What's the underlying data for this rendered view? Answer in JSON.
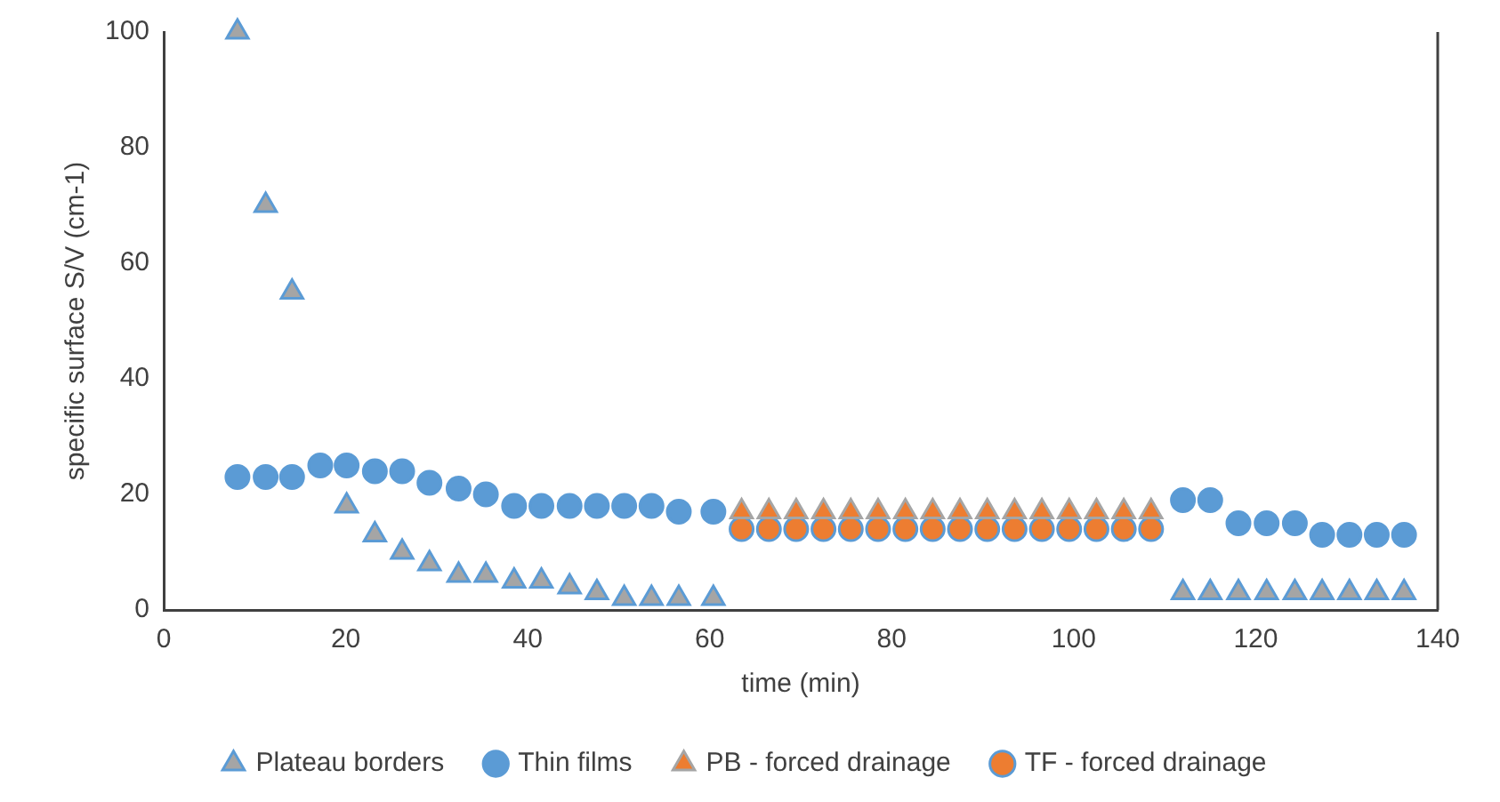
{
  "chart_data": {
    "type": "scatter",
    "xlabel": "time (min)",
    "ylabel": "specific surface S/V (cm-1)",
    "xlim": [
      0,
      140
    ],
    "xticks": [
      0,
      20,
      40,
      60,
      80,
      100,
      120,
      140
    ],
    "ylim": [
      0,
      100
    ],
    "yticks": [
      0,
      20,
      40,
      60,
      80,
      100
    ],
    "grid": false,
    "legend": "bottom",
    "series": [
      {
        "name": "Plateau borders",
        "color": "#a5a5a5",
        "marker": "triangle",
        "x": [
          8.1,
          11.2,
          14.1,
          20.1,
          23.2,
          26.2,
          29.2,
          32.4,
          35.4,
          38.5,
          41.5,
          44.6,
          47.6,
          50.6,
          53.6,
          56.6,
          60.4,
          112,
          115,
          118.1,
          121.2,
          124.3,
          127.3,
          130.3,
          133.3,
          136.3
        ],
        "values": [
          100,
          70,
          55,
          18,
          13,
          10,
          8,
          6,
          6,
          5,
          5,
          4,
          3,
          2,
          2,
          2,
          2,
          3,
          3,
          3,
          3,
          3,
          3,
          3,
          3,
          3
        ]
      },
      {
        "name": "Thin films",
        "color": "#5b9bd5",
        "marker": "circle",
        "x": [
          8.1,
          11.2,
          14.1,
          17.2,
          20.1,
          23.2,
          26.2,
          29.2,
          32.4,
          35.4,
          38.5,
          41.5,
          44.6,
          47.6,
          50.6,
          53.6,
          56.6,
          60.4,
          112,
          115,
          118.1,
          121.2,
          124.3,
          127.3,
          130.3,
          133.3,
          136.3
        ],
        "values": [
          23,
          23,
          23,
          25,
          25,
          24,
          24,
          22,
          21,
          20,
          18,
          18,
          18,
          18,
          18,
          18,
          17,
          17,
          19,
          19,
          15,
          15,
          15,
          13,
          13,
          13,
          13
        ]
      },
      {
        "name": "PB - forced drainage",
        "color": "#ed7d31",
        "marker": "triangle",
        "x": [
          63.5,
          66.5,
          69.5,
          72.5,
          75.5,
          78.5,
          81.5,
          84.5,
          87.5,
          90.5,
          93.5,
          96.5,
          99.5,
          102.5,
          105.5,
          108.5
        ],
        "values": [
          17,
          17,
          17,
          17,
          17,
          17,
          17,
          17,
          17,
          17,
          17,
          17,
          17,
          17,
          17,
          17
        ]
      },
      {
        "name": "TF - forced drainage",
        "color": "#ed7d31",
        "marker": "circle",
        "x": [
          63.5,
          66.5,
          69.5,
          72.5,
          75.5,
          78.5,
          81.5,
          84.5,
          87.5,
          90.5,
          93.5,
          96.5,
          99.5,
          102.5,
          105.5,
          108.5
        ],
        "values": [
          14,
          14,
          14,
          14,
          14,
          14,
          14,
          14,
          14,
          14,
          14,
          14,
          14,
          14,
          14,
          14
        ]
      }
    ]
  }
}
